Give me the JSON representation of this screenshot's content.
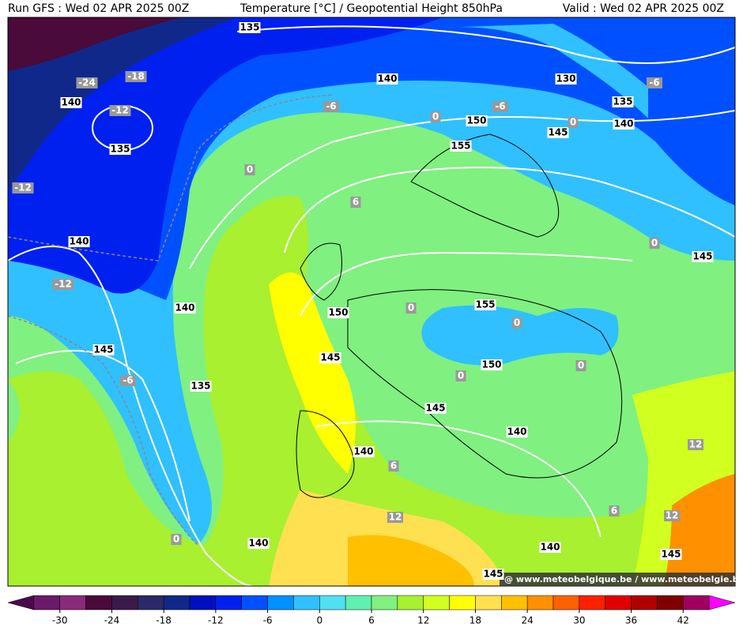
{
  "header": {
    "left": "Run GFS : Wed 02 APR 2025 00Z",
    "center": "Temperature [°C] / Geopotential Height 850hPa",
    "right": "Valid : Wed 02 APR 2025 00Z"
  },
  "height_labels": [
    "135",
    "140",
    "130",
    "135",
    "140",
    "150",
    "155",
    "145",
    "140",
    "135",
    "140",
    "140",
    "145",
    "135",
    "145",
    "150",
    "155",
    "150",
    "145",
    "140",
    "140",
    "140",
    "140",
    "145",
    "145",
    "145"
  ],
  "temperature_labels": [
    "-24",
    "-18",
    "-12",
    "-12",
    "-12",
    "-6",
    "-6",
    "-6",
    "0",
    "0",
    "0",
    "6",
    "0",
    "0",
    "0",
    "0",
    "0",
    "-6",
    "6",
    "12",
    "6",
    "12",
    "12",
    "0"
  ],
  "watermark": "@ www.meteobelgique.be / www.meteobelgie.be",
  "colorbar": {
    "lim": [
      -36,
      48
    ],
    "ticks": [
      -30,
      -24,
      -18,
      -12,
      -6,
      0,
      6,
      12,
      18,
      24,
      30,
      36,
      42
    ],
    "colors": [
      "#4a0a4a",
      "#6a1a6a",
      "#8a2a7a",
      "#4a0a3a",
      "#3a1a4a",
      "#2a2a6a",
      "#10288a",
      "#0010c0",
      "#0020f0",
      "#0050ff",
      "#0090ff",
      "#30c0ff",
      "#50e0f0",
      "#60f0b0",
      "#80f080",
      "#a8f030",
      "#d0ff20",
      "#ffff00",
      "#ffe050",
      "#ffc000",
      "#ff9000",
      "#ff6000",
      "#ff2000",
      "#e00000",
      "#b00000",
      "#800000",
      "#a00060",
      "#ff00ff"
    ]
  }
}
